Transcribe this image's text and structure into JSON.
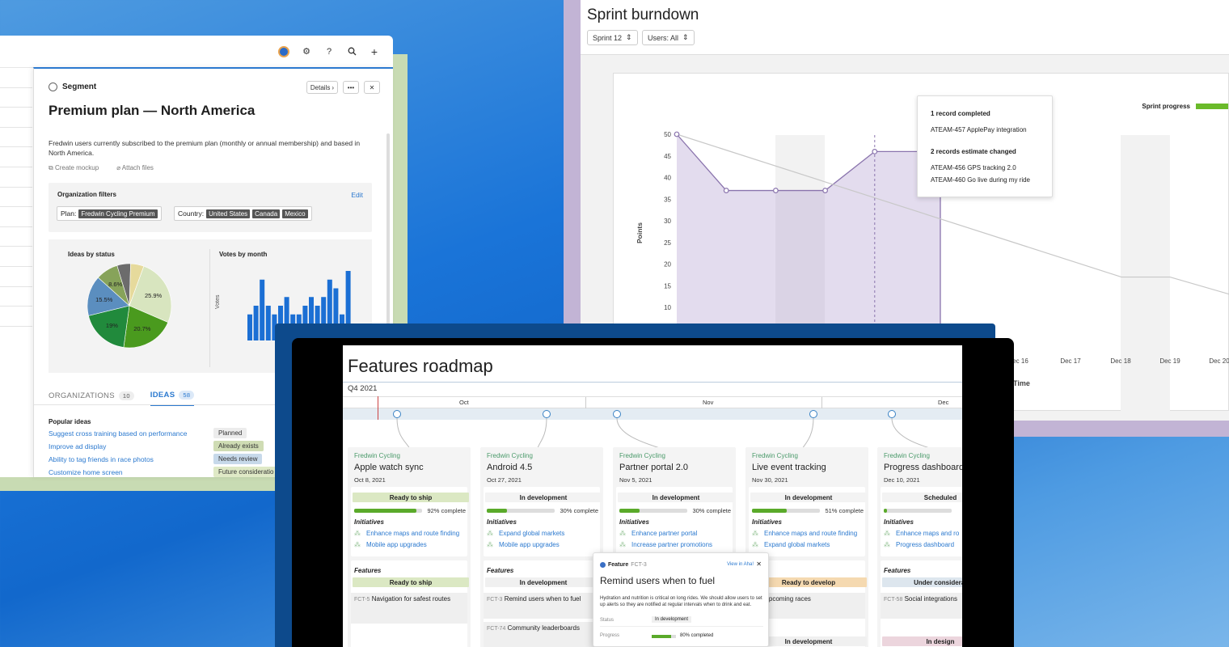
{
  "segment": {
    "topbar_icons": [
      "avatar",
      "gear-icon",
      "help-icon",
      "search-icon",
      "plus-icon"
    ],
    "header_label": "Segment",
    "details_btn": "Details",
    "more_btn": "•••",
    "close_btn": "✕",
    "title": "Premium plan — North America",
    "description": "Fredwin users currently subscribed to the premium plan (monthly or annual membership) and based in North America.",
    "create_mockup": "Create mockup",
    "attach_files": "Attach files",
    "org_filters_title": "Organization filters",
    "edit": "Edit",
    "plan_label": "Plan:",
    "plan_value": "Fredwin Cycling Premium",
    "country_label": "Country:",
    "countries": [
      "United States",
      "Canada",
      "Mexico"
    ],
    "ideas_by_status": "Ideas by status",
    "votes_by_month": "Votes by month",
    "votes_axis": "Votes",
    "pie": [
      {
        "pct": 25.9,
        "label": "25.9%",
        "color": "#d8e5bf"
      },
      {
        "pct": 20.7,
        "label": "20.7%",
        "color": "#4a9a1e"
      },
      {
        "pct": 19,
        "label": "19%",
        "color": "#218a3c"
      },
      {
        "pct": 15.5,
        "label": "15.5%",
        "color": "#5b8ebf"
      },
      {
        "pct": 8.6,
        "label": "8.6%",
        "color": "#87a35a"
      },
      {
        "pct": 5.2,
        "label": "",
        "color": "#6c6c6c"
      },
      {
        "pct": 5.1,
        "label": "",
        "color": "#e6da9c"
      }
    ],
    "votes": [
      3,
      4,
      7,
      4,
      3,
      4,
      5,
      3,
      3,
      4,
      5,
      4,
      5,
      7,
      6,
      3,
      8
    ],
    "tab_orgs": "ORGANIZATIONS",
    "tab_orgs_count": "10",
    "tab_ideas": "IDEAS",
    "tab_ideas_count": "58",
    "popular_title": "Popular ideas",
    "ideas": [
      {
        "name": "Suggest cross training based on performance",
        "status": "Planned",
        "color": "#ececec"
      },
      {
        "name": "Improve ad display",
        "status": "Already exists",
        "color": "#cfdcb4"
      },
      {
        "name": "Ability to tag friends in race photos",
        "status": "Needs review",
        "color": "#c7d9ea"
      },
      {
        "name": "Customize home screen",
        "status": "Future consideratio",
        "color": "#dfe9c6"
      }
    ]
  },
  "burndown": {
    "title": "Sprint burndown",
    "sprint_select": "Sprint 12",
    "users_select": "Users: All",
    "legend": "Sprint progress",
    "y_label": "Points",
    "x_label": "Time",
    "tooltip": {
      "h1": "1 record completed",
      "r1": "ATEAM-457 ApplePay integration",
      "h2": "2 records estimate changed",
      "r2": "ATEAM-456 GPS tracking 2.0",
      "r3": "ATEAM-460 Go live during my ride"
    }
  },
  "chart_data": {
    "type": "line",
    "title": "Sprint burndown",
    "xlabel": "Time",
    "ylabel": "Points",
    "y_ticks": [
      50,
      45,
      40,
      35,
      30,
      25,
      20,
      15,
      10
    ],
    "x_ticks": [
      "ec 16",
      "Dec 17",
      "Dec 18",
      "Dec 19",
      "Dec 20"
    ],
    "series": [
      {
        "name": "Sprint progress",
        "values": [
          50,
          37,
          37,
          37,
          46,
          46
        ]
      },
      {
        "values": [
          50,
          17,
          17,
          13
        ]
      }
    ]
  },
  "roadmap": {
    "title": "Features roadmap",
    "quarter": "Q4 2021",
    "months": [
      "Oct",
      "Nov",
      "Dec"
    ],
    "cards": [
      {
        "kicker": "Fredwin Cycling",
        "name": "Apple watch sync",
        "date": "Oct 8, 2021",
        "status": "Ready to ship",
        "status_color": "#dbe8c3",
        "pct": 92,
        "pct_label": "92% complete",
        "initiatives_label": "Initiatives",
        "initiatives": [
          "Enhance maps and route finding",
          "Mobile app upgrades"
        ],
        "features_label": "Features",
        "feat_status": "Ready to ship",
        "feat_color": "#dbe8c3",
        "items": [
          {
            "key": "FCT-5",
            "name": "Navigation for safest routes"
          }
        ],
        "next_status": ""
      },
      {
        "kicker": "Fredwin Cycling",
        "name": "Android 4.5",
        "date": "Oct 27, 2021",
        "status": "In development",
        "status_color": "#f3f3f3",
        "pct": 30,
        "pct_label": "30% complete",
        "initiatives_label": "Initiatives",
        "initiatives": [
          "Expand global markets",
          "Mobile app upgrades"
        ],
        "features_label": "Features",
        "feat_status": "In development",
        "feat_color": "#f0f0f0",
        "items": [
          {
            "key": "FCT-3",
            "name": "Remind users when to fuel"
          },
          {
            "key": "FCT-74",
            "name": "Community leaderboards"
          }
        ],
        "next_status": ""
      },
      {
        "kicker": "Fredwin Cycling",
        "name": "Partner portal 2.0",
        "date": "Nov 5, 2021",
        "status": "In development",
        "status_color": "#f3f3f3",
        "pct": 30,
        "pct_label": "30% complete",
        "initiatives_label": "Initiatives",
        "initiatives": [
          "Enhance partner portal",
          "Increase partner promotions"
        ],
        "features_label": "",
        "feat_status": "",
        "feat_color": "",
        "items": [],
        "next_status": ""
      },
      {
        "kicker": "Fredwin Cycling",
        "name": "Live event tracking",
        "date": "Nov 30, 2021",
        "status": "In development",
        "status_color": "#f3f3f3",
        "pct": 51,
        "pct_label": "51% complete",
        "initiatives_label": "Initiatives",
        "initiatives": [
          "Enhance maps and route finding",
          "Expand global markets"
        ],
        "features_label": "es",
        "feat_status": "Ready to develop",
        "feat_color": "#f5d9b0",
        "items": [
          {
            "key": "",
            "name": "Add upcoming races"
          }
        ],
        "next_status": "In development"
      },
      {
        "kicker": "Fredwin Cycling",
        "name": "Progress dashboard",
        "date": "Dec 10, 2021",
        "status": "Scheduled",
        "status_color": "#f3f3f3",
        "pct": 5,
        "pct_label": "",
        "initiatives_label": "Initiatives",
        "initiatives": [
          "Enhance maps and ro",
          "Progress dashboard"
        ],
        "features_label": "Features",
        "feat_status": "Under considerat",
        "feat_color": "#dde6ee",
        "items": [
          {
            "key": "FCT-58",
            "name": "Social integrations"
          }
        ],
        "next_status": "In design"
      }
    ],
    "popup": {
      "type_label": "Feature",
      "key": "FCT-3",
      "view": "View in Aha!",
      "title": "Remind users when to fuel",
      "desc": "Hydration and nutrition is critical on long rides. We should allow users to set up alerts so they are notified at regular intervals when to drink and eat.",
      "status_label": "Status",
      "status": "In development",
      "progress_label": "Progress",
      "progress": 80,
      "progress_text": "80% completed"
    }
  }
}
